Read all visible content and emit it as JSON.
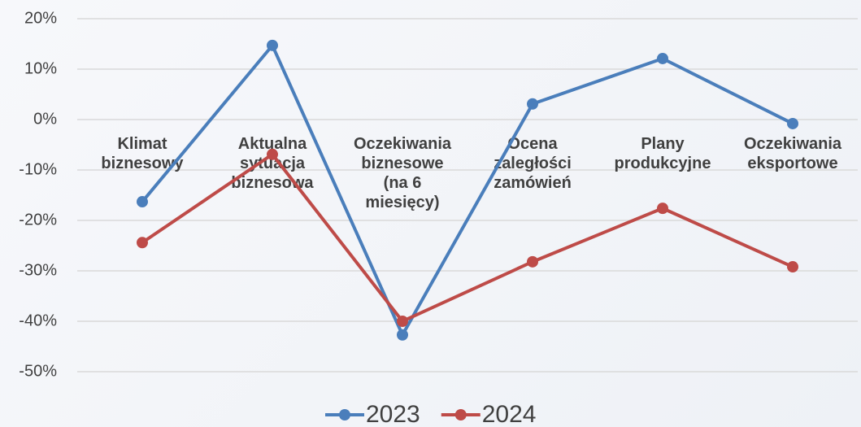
{
  "chart_data": {
    "type": "line",
    "categories": [
      "Klimat biznesowy",
      "Aktualna sytuacja biznesowa",
      "Oczekiwania biznesowe (na 6 miesięcy)",
      "Ocena zaległości zamówień",
      "Plany produkcyjne",
      "Oczekiwania eksportowe"
    ],
    "series": [
      {
        "name": "2023",
        "color": "#4a7ebb",
        "values": [
          -16.3,
          14.7,
          -42.7,
          3.1,
          12.1,
          -0.8
        ]
      },
      {
        "name": "2024",
        "color": "#be4b48",
        "values": [
          -24.4,
          -6.9,
          -40,
          -28.2,
          -17.6,
          -29.2
        ]
      }
    ],
    "ylim": [
      -50,
      20
    ],
    "yticks": [
      {
        "value": -50,
        "label": "-50%"
      },
      {
        "value": -40,
        "label": "-40%"
      },
      {
        "value": -30,
        "label": "-30%"
      },
      {
        "value": -20,
        "label": "-20%"
      },
      {
        "value": -10,
        "label": "-10%"
      },
      {
        "value": 0,
        "label": "0%"
      },
      {
        "value": 10,
        "label": "10%"
      },
      {
        "value": 20,
        "label": "20%"
      }
    ],
    "grid": true,
    "legend": "bottom"
  }
}
